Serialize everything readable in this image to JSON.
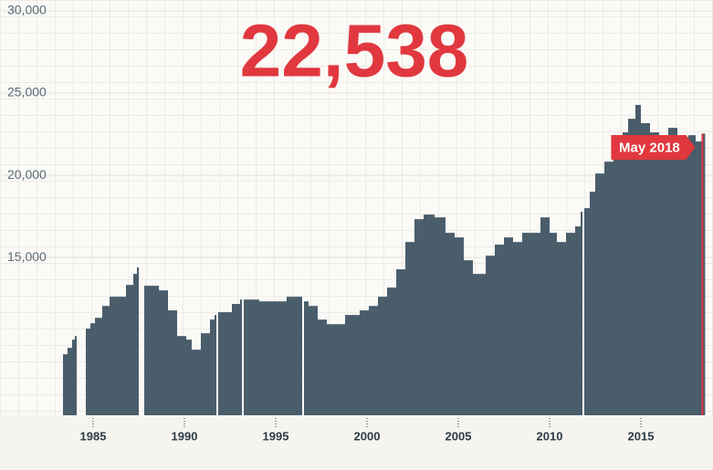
{
  "chart_data": {
    "type": "bar",
    "title": "22,538",
    "color": "#4a5d6b",
    "accent": "#e0383e",
    "annotation": "May 2018",
    "x": [
      1983.35,
      1983.6,
      1983.85,
      1984.0,
      1984.1,
      1984.6,
      1984.85,
      1985.1,
      1985.5,
      1985.9,
      1986.4,
      1986.8,
      1987.2,
      1987.4,
      1987.5,
      1987.8,
      1988.2,
      1988.6,
      1989.1,
      1989.6,
      1990.1,
      1990.4,
      1990.9,
      1991.4,
      1991.65,
      1991.75,
      1991.85,
      1992.1,
      1992.6,
      1993.05,
      1993.15,
      1993.25,
      1993.6,
      1994.1,
      1994.9,
      1995.6,
      1996.3,
      1996.45,
      1996.55,
      1996.8,
      1997.3,
      1997.8,
      1998.3,
      1998.8,
      1999.6,
      2000.1,
      2000.6,
      2001.1,
      2001.6,
      2002.1,
      2002.6,
      2003.1,
      2003.7,
      2004.3,
      2004.8,
      2005.3,
      2005.8,
      2006.2,
      2006.5,
      2007.0,
      2007.5,
      2008.0,
      2008.5,
      2009.0,
      2009.5,
      2010.0,
      2010.4,
      2010.9,
      2011.4,
      2011.7,
      2011.8,
      2011.9,
      2012.2,
      2012.5,
      2013.0,
      2013.5,
      2014.0,
      2014.3,
      2014.7,
      2015.0,
      2015.5,
      2016.0,
      2016.5,
      2017.0,
      2017.6,
      2018.0,
      2018.37
    ],
    "values": [
      9110,
      9500,
      10000,
      10220,
      null,
      10670,
      11000,
      11330,
      12050,
      12610,
      12610,
      13330,
      14000,
      14390,
      null,
      13280,
      13280,
      13000,
      11780,
      10220,
      10000,
      9390,
      10390,
      11220,
      11500,
      null,
      11670,
      11670,
      12170,
      12440,
      null,
      12440,
      12440,
      12330,
      12330,
      12610,
      12610,
      null,
      12330,
      12050,
      11220,
      10940,
      10940,
      11500,
      11780,
      12050,
      12610,
      13170,
      14280,
      15940,
      17330,
      17610,
      17440,
      16500,
      16220,
      14830,
      14000,
      14000,
      15110,
      15780,
      16220,
      15940,
      16500,
      16500,
      17440,
      16500,
      15940,
      16500,
      16890,
      17780,
      null,
      18000,
      19000,
      20110,
      20830,
      21780,
      22610,
      23440,
      24280,
      23170,
      22610,
      22330,
      22890,
      22330,
      22440,
      22060,
      22538
    ],
    "xlim": [
      1980,
      2018.9
    ],
    "ylim": [
      5400,
      30000
    ],
    "xticks": [
      1985,
      1990,
      1995,
      2000,
      2005,
      2010,
      2015
    ],
    "yticks": [
      {
        "value": 15000,
        "label": "15,000"
      },
      {
        "value": 20000,
        "label": "20,000"
      },
      {
        "value": 25000,
        "label": "25,000"
      },
      {
        "value": 30000,
        "label": "30,000"
      }
    ],
    "grid": true
  }
}
